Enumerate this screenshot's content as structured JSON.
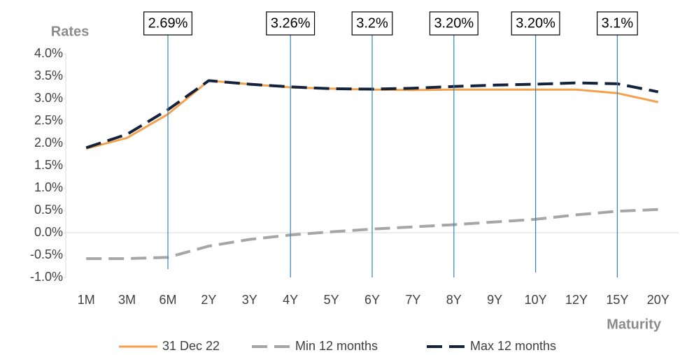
{
  "chart_data": {
    "type": "line",
    "y_axis_label": "Rates",
    "x_axis_label": "Maturity",
    "categories": [
      "1M",
      "3M",
      "6M",
      "2Y",
      "3Y",
      "4Y",
      "5Y",
      "6Y",
      "7Y",
      "8Y",
      "9Y",
      "10Y",
      "12Y",
      "15Y",
      "20Y"
    ],
    "series": [
      {
        "name": "31 Dec 22",
        "color": "#f4a14e",
        "dash": false,
        "values": [
          1.88,
          2.12,
          2.65,
          3.4,
          3.32,
          3.25,
          3.22,
          3.2,
          3.19,
          3.2,
          3.2,
          3.2,
          3.2,
          3.12,
          2.92
        ]
      },
      {
        "name": "Min 12 months",
        "color": "#a6a6a6",
        "dash": true,
        "values": [
          -0.58,
          -0.58,
          -0.55,
          -0.3,
          -0.15,
          -0.05,
          0.02,
          0.08,
          0.13,
          0.18,
          0.24,
          0.3,
          0.4,
          0.48,
          0.52
        ]
      },
      {
        "name": "Max 12 months",
        "color": "#14233c",
        "dash": true,
        "values": [
          1.9,
          2.2,
          2.75,
          3.4,
          3.32,
          3.26,
          3.22,
          3.21,
          3.23,
          3.27,
          3.3,
          3.32,
          3.35,
          3.33,
          3.15
        ]
      }
    ],
    "ylim": [
      -1.0,
      4.0
    ],
    "yticks": [
      {
        "value": -1.0,
        "label": "-1.0%"
      },
      {
        "value": -0.5,
        "label": "-0.5%"
      },
      {
        "value": 0.0,
        "label": "0.0%"
      },
      {
        "value": 0.5,
        "label": "0.5%"
      },
      {
        "value": 1.0,
        "label": "1.0%"
      },
      {
        "value": 1.5,
        "label": "1.5%"
      },
      {
        "value": 2.0,
        "label": "2.0%"
      },
      {
        "value": 2.5,
        "label": "2.5%"
      },
      {
        "value": 3.0,
        "label": "3.0%"
      },
      {
        "value": 3.5,
        "label": "3.5%"
      },
      {
        "value": 4.0,
        "label": "4.0%"
      }
    ],
    "annotations": [
      "2.69%",
      "3.26%",
      "3.2%",
      "3.20%",
      "3.20%",
      "3.1%"
    ],
    "legend": "bottom"
  }
}
